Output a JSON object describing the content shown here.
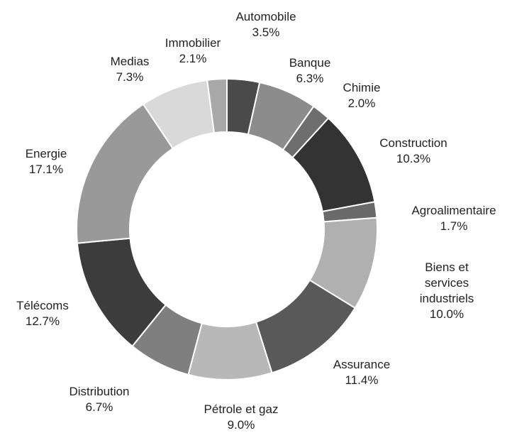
{
  "chart_data": {
    "type": "donut",
    "categories": [
      "Automobile",
      "Banque",
      "Chimie",
      "Construction",
      "Agroalimentaire",
      "Biens et services industriels",
      "Assurance",
      "Pétrole et gaz",
      "Distribution",
      "Télécoms",
      "Energie",
      "Medias",
      "Immobilier"
    ],
    "values": [
      3.5,
      6.3,
      2.0,
      10.3,
      1.7,
      10.0,
      11.4,
      9.0,
      6.7,
      12.7,
      17.1,
      7.3,
      2.1
    ],
    "value_labels": [
      "3.5%",
      "6.3%",
      "2.0%",
      "10.3%",
      "1.7%",
      "10.0%",
      "11.4%",
      "9.0%",
      "6.7%",
      "12.7%",
      "17.1%",
      "7.3%",
      "2.1%"
    ],
    "colors": [
      "#4a4a4a",
      "#8c8c8c",
      "#6e6e6e",
      "#333333",
      "#6a6a6a",
      "#b0b0b0",
      "#595959",
      "#b8b8b8",
      "#7f7f7f",
      "#3c3c3c",
      "#999999",
      "#d9d9d9",
      "#a8a8a8"
    ]
  }
}
